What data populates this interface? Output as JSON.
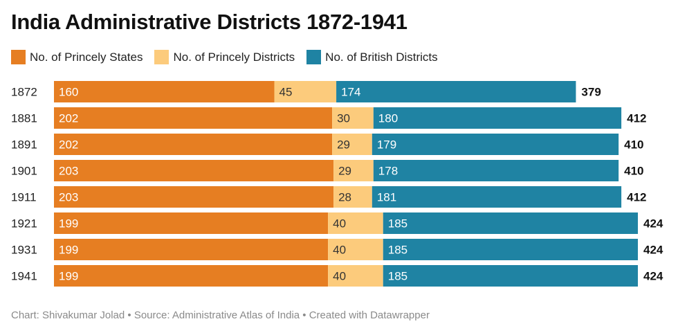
{
  "title": "India Administrative Districts 1872-1941",
  "footer": "Chart: Shivakumar Jolad • Source: Administrative Atlas of India • Created with Datawrapper",
  "colors": {
    "princely_states": "#e67e22",
    "princely_districts": "#fccb7c",
    "british_districts": "#1f83a3"
  },
  "chart_data": {
    "type": "bar",
    "orientation": "horizontal",
    "stacked": true,
    "title": "India Administrative Districts 1872-1941",
    "categories": [
      "1872",
      "1881",
      "1891",
      "1901",
      "1911",
      "1921",
      "1931",
      "1941"
    ],
    "series": [
      {
        "name": "No. of Princely States",
        "color": "#e67e22",
        "label_color": "#ffffff",
        "values": [
          160,
          202,
          202,
          203,
          203,
          199,
          199,
          199
        ]
      },
      {
        "name": "No. of Princely Districts",
        "color": "#fccb7c",
        "label_color": "#333333",
        "values": [
          45,
          30,
          29,
          29,
          28,
          40,
          40,
          40
        ]
      },
      {
        "name": "No. of British Districts",
        "color": "#1f83a3",
        "label_color": "#ffffff",
        "values": [
          174,
          180,
          179,
          178,
          181,
          185,
          185,
          185
        ]
      }
    ],
    "totals": [
      379,
      412,
      410,
      410,
      412,
      424,
      424,
      424
    ],
    "legend": "top",
    "xlim": [
      0,
      424
    ],
    "grid": false
  }
}
